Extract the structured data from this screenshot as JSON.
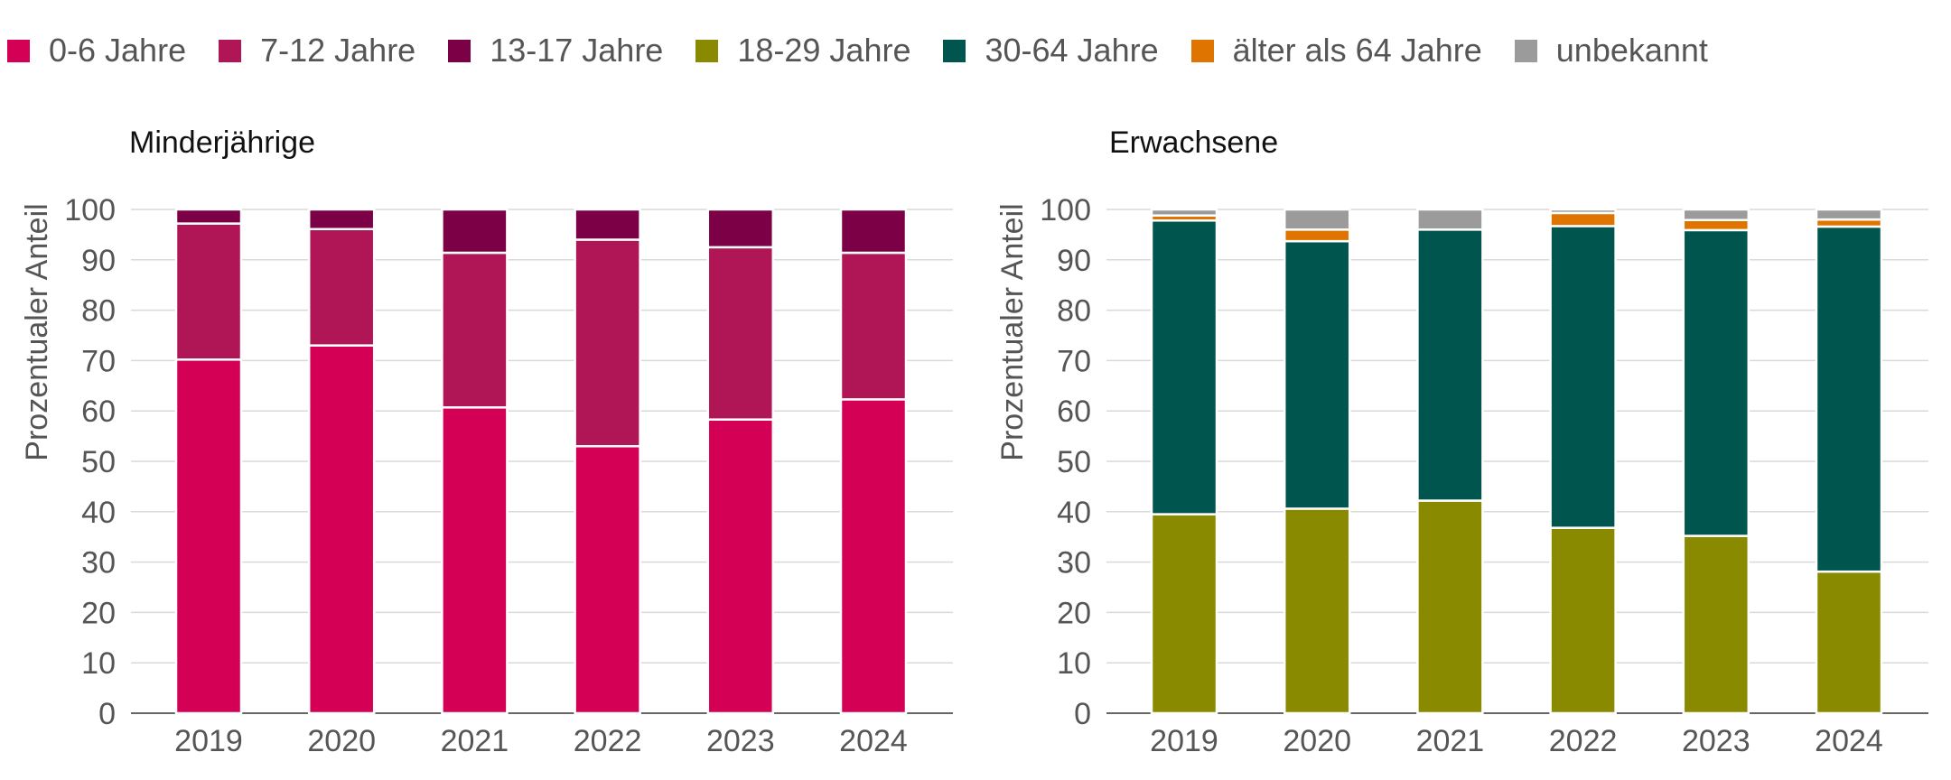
{
  "legend": [
    {
      "label": "0-6 Jahre",
      "color": "#d40055"
    },
    {
      "label": "7-12 Jahre",
      "color": "#b01656"
    },
    {
      "label": "13-17 Jahre",
      "color": "#7b0046"
    },
    {
      "label": "18-29 Jahre",
      "color": "#8a8a00"
    },
    {
      "label": "30-64 Jahre",
      "color": "#00564f"
    },
    {
      "label": "älter als 64 Jahre",
      "color": "#e07400"
    },
    {
      "label": "unbekannt",
      "color": "#9b9b9b"
    }
  ],
  "chart_data": [
    {
      "type": "bar",
      "stacked": true,
      "title": "Minderjährige",
      "ylabel": "Prozentualer Anteil",
      "xlabel": "",
      "ylim": [
        0,
        100
      ],
      "yticks": [
        0,
        10,
        20,
        30,
        40,
        50,
        60,
        70,
        80,
        90,
        100
      ],
      "grid": true,
      "categories": [
        "2019",
        "2020",
        "2021",
        "2022",
        "2023",
        "2024"
      ],
      "series": [
        {
          "name": "0-6 Jahre",
          "color": "#d40055",
          "values": [
            70.2,
            73.0,
            60.7,
            53.0,
            58.3,
            62.3
          ]
        },
        {
          "name": "7-12 Jahre",
          "color": "#b01656",
          "values": [
            27.0,
            23.1,
            30.7,
            41.0,
            34.2,
            29.1
          ]
        },
        {
          "name": "13-17 Jahre",
          "color": "#7b0046",
          "values": [
            2.8,
            3.9,
            8.6,
            6.0,
            7.5,
            8.6
          ]
        }
      ]
    },
    {
      "type": "bar",
      "stacked": true,
      "title": "Erwachsene",
      "ylabel": "Prozentualer Anteil",
      "xlabel": "",
      "ylim": [
        0,
        100
      ],
      "yticks": [
        0,
        10,
        20,
        30,
        40,
        50,
        60,
        70,
        80,
        90,
        100
      ],
      "grid": true,
      "categories": [
        "2019",
        "2020",
        "2021",
        "2022",
        "2023",
        "2024"
      ],
      "series": [
        {
          "name": "18-29 Jahre",
          "color": "#8a8a00",
          "values": [
            39.5,
            40.6,
            42.2,
            36.8,
            35.2,
            28.1
          ]
        },
        {
          "name": "30-64 Jahre",
          "color": "#00564f",
          "values": [
            58.3,
            53.1,
            53.8,
            59.9,
            60.7,
            68.5
          ]
        },
        {
          "name": "älter als 64 Jahre",
          "color": "#e07400",
          "values": [
            1.0,
            2.3,
            0.0,
            2.6,
            2.0,
            1.4
          ]
        },
        {
          "name": "unbekannt",
          "color": "#9b9b9b",
          "values": [
            1.2,
            4.0,
            4.0,
            0.7,
            2.1,
            2.0
          ]
        }
      ]
    }
  ]
}
